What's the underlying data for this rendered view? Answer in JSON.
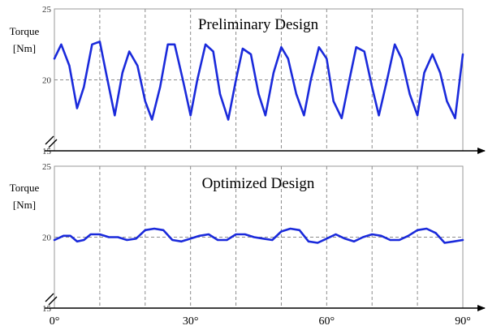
{
  "chart_data": [
    {
      "type": "line",
      "title": "Preliminary Design",
      "ylabel_line1": "Torque",
      "ylabel_line2": "[Nm]",
      "xlabel": "",
      "xlim": [
        0,
        90
      ],
      "ylim": [
        15,
        25
      ],
      "y_ticks": [
        "25",
        "20",
        "15"
      ],
      "x_tick_labels": [],
      "grid": true,
      "series": [
        {
          "name": "",
          "color": "#1a2adb",
          "x": [
            0,
            1.5,
            3.3,
            5.0,
            6.5,
            8.3,
            10.0,
            11.5,
            13.3,
            15.0,
            16.5,
            18.3,
            20.0,
            21.5,
            23.3,
            25.0,
            26.5,
            28.3,
            30.0,
            31.5,
            33.3,
            35.0,
            36.5,
            38.3,
            40.0,
            41.5,
            43.3,
            45.0,
            46.5,
            48.3,
            50.0,
            51.5,
            53.3,
            55.0,
            56.5,
            58.3,
            60.0,
            61.5,
            63.3,
            65.0,
            66.5,
            68.3,
            70.0,
            71.5,
            73.3,
            75.0,
            76.5,
            78.3,
            80.0,
            81.5,
            83.3,
            85.0,
            86.5,
            88.3,
            90.0
          ],
          "y": [
            21.5,
            22.5,
            21.0,
            18.0,
            19.5,
            22.5,
            22.7,
            20.3,
            17.5,
            20.5,
            22.0,
            21.0,
            18.5,
            17.2,
            19.5,
            22.5,
            22.5,
            20.0,
            17.5,
            20.0,
            22.5,
            22.0,
            19.0,
            17.2,
            20.0,
            22.2,
            21.8,
            19.0,
            17.5,
            20.5,
            22.3,
            21.5,
            19.0,
            17.5,
            20.0,
            22.3,
            21.5,
            18.5,
            17.3,
            20.0,
            22.3,
            22.0,
            19.5,
            17.5,
            20.0,
            22.5,
            21.5,
            19.0,
            17.5,
            20.5,
            21.8,
            20.5,
            18.5,
            17.3,
            21.8
          ]
        }
      ]
    },
    {
      "type": "line",
      "title": "Optimized Design",
      "ylabel_line1": "Torque",
      "ylabel_line2": "[Nm]",
      "xlabel": "",
      "xlim": [
        0,
        90
      ],
      "ylim": [
        15,
        25
      ],
      "y_ticks": [
        "25",
        "20",
        "15"
      ],
      "x_ticks": [
        0,
        30,
        60,
        90
      ],
      "x_tick_labels": [
        "0°",
        "30°",
        "60°",
        "90°"
      ],
      "grid": true,
      "series": [
        {
          "name": "",
          "color": "#1a2adb",
          "x": [
            0,
            2.0,
            3.5,
            5.0,
            6.5,
            8.0,
            10.0,
            12.0,
            14.0,
            16.0,
            18.0,
            20.0,
            22.0,
            24.0,
            26.0,
            28.0,
            30.0,
            32.0,
            34.0,
            36.0,
            38.0,
            40.0,
            42.0,
            44.0,
            46.0,
            48.0,
            50.0,
            52.0,
            54.0,
            56.0,
            58.0,
            60.0,
            62.0,
            64.0,
            66.0,
            68.0,
            70.0,
            72.0,
            74.0,
            76.0,
            78.0,
            80.0,
            82.0,
            84.0,
            86.0,
            88.0,
            90.0
          ],
          "y": [
            19.8,
            20.1,
            20.1,
            19.7,
            19.8,
            20.2,
            20.2,
            20.0,
            20.0,
            19.8,
            19.9,
            20.5,
            20.6,
            20.5,
            19.8,
            19.7,
            19.9,
            20.1,
            20.2,
            19.8,
            19.8,
            20.2,
            20.2,
            20.0,
            19.9,
            19.8,
            20.4,
            20.6,
            20.5,
            19.7,
            19.6,
            19.9,
            20.2,
            19.9,
            19.7,
            20.0,
            20.2,
            20.1,
            19.8,
            19.8,
            20.1,
            20.5,
            20.6,
            20.3,
            19.6,
            19.7,
            19.8
          ]
        }
      ]
    }
  ]
}
